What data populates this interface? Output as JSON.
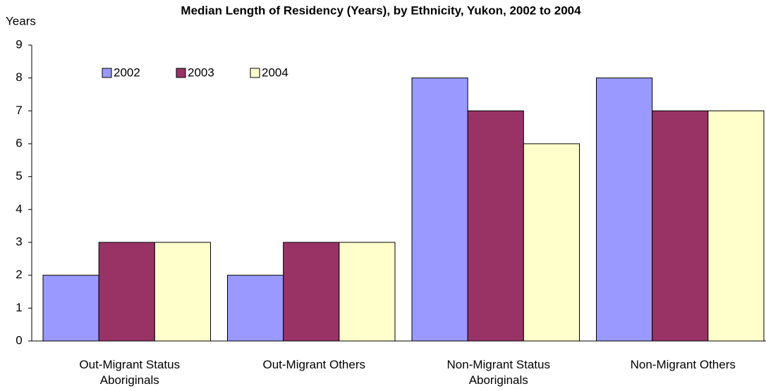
{
  "chart_data": {
    "type": "bar",
    "title": "Median Length of Residency (Years), by Ethnicity, Yukon, 2002 to 2004",
    "y_label": "Years",
    "categories": [
      "Out-Migrant Status Aboriginals",
      "Out-Migrant Others",
      "Non-Migrant Status Aboriginals",
      "Non-Migrant Others"
    ],
    "series": [
      {
        "name": "2002",
        "color": "#9999ff",
        "values": [
          2,
          2,
          8,
          8
        ]
      },
      {
        "name": "2003",
        "color": "#993366",
        "values": [
          3,
          3,
          7,
          7
        ]
      },
      {
        "name": "2004",
        "color": "#ffffcc",
        "values": [
          3,
          3,
          6,
          7
        ]
      }
    ],
    "ylim": [
      0,
      9
    ],
    "yticks": [
      0,
      1,
      2,
      3,
      4,
      5,
      6,
      7,
      8,
      9
    ],
    "grid": false,
    "legend": "upper left"
  }
}
